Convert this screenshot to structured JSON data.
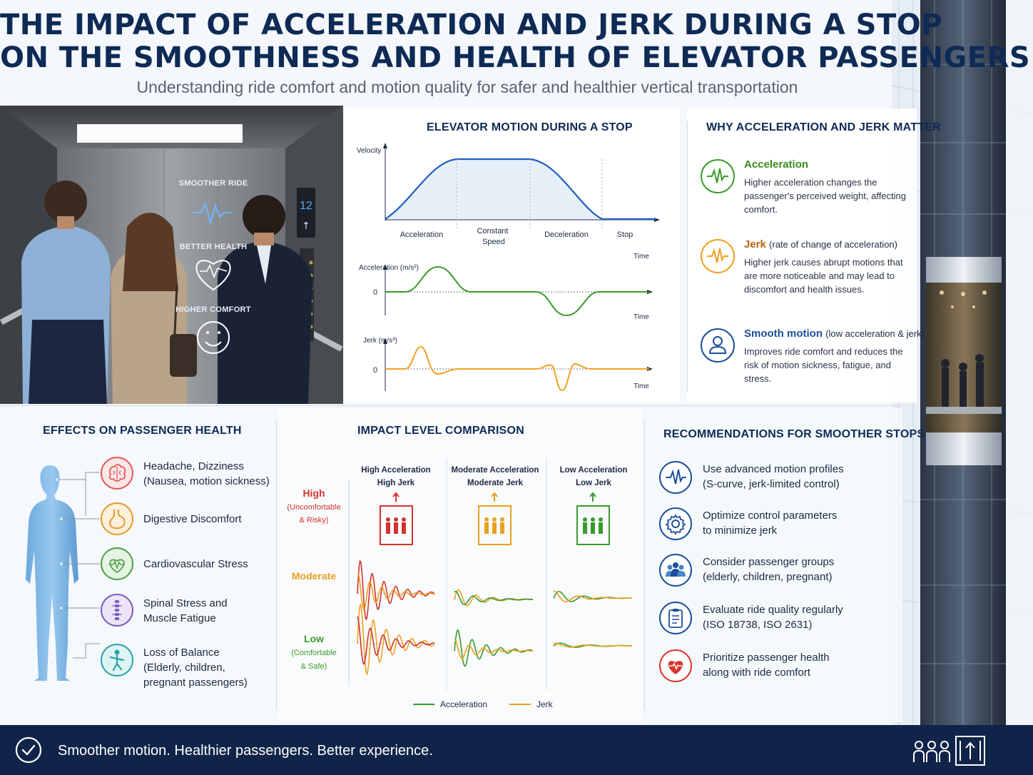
{
  "title": {
    "line1": "THE IMPACT OF ACCELERATION AND JERK DURING A STOP",
    "line2": "ON THE SMOOTHNESS AND HEALTH OF ELEVATOR PASSENGERS",
    "subtitle": "Understanding ride comfort and motion quality for safer and healthier vertical transportation"
  },
  "photo": {
    "floor_display": "12",
    "overlay": [
      "SMOOTHER RIDE",
      "BETTER HEALTH",
      "HIGHER COMFORT"
    ],
    "icons": [
      "heartbeat-icon",
      "heart-pulse-icon",
      "smiley-icon"
    ]
  },
  "motion": {
    "title": "ELEVATOR MOTION DURING A STOP",
    "velocity_label": "Velocity",
    "phases": [
      "Acceleration",
      "Constant Speed",
      "Deceleration",
      "Stop"
    ],
    "time_label": "Time",
    "accel_label": "Acceleration (m/s²)",
    "jerk_label": "Jerk (m/s³)",
    "zero": "0",
    "colors": {
      "velocity": "#1f5fbf",
      "acceleration": "#3a9a2a",
      "jerk": "#f0a020"
    }
  },
  "why": {
    "title": "WHY ACCELERATION AND JERK MATTER",
    "items": [
      {
        "head": "Acceleration",
        "sub": "",
        "body": "Higher acceleration changes the passenger's perceived weight, affecting comfort.",
        "color": "#3a8a1f",
        "icon": "waveform-icon"
      },
      {
        "head": "Jerk",
        "sub": "(rate of change of acceleration)",
        "body": "Higher jerk causes abrupt motions that are more noticeable and may lead to discomfort and health issues.",
        "color": "#b5650e",
        "icon": "waveform-icon"
      },
      {
        "head": "Smooth motion",
        "sub": "(low acceleration & jerk)",
        "body": "Improves ride comfort and reduces the risk of motion sickness, fatigue, and stress.",
        "color": "#1b4f9c",
        "icon": "person-icon"
      }
    ]
  },
  "effects": {
    "title": "EFFECTS ON PASSENGER HEALTH",
    "items": [
      {
        "lines": [
          "Headache, Dizziness",
          "(Nausea, motion sickness)"
        ],
        "icon": "brain-icon",
        "color": "#e05a5a",
        "bg": "#fde6e6"
      },
      {
        "lines": [
          "Digestive Discomfort"
        ],
        "icon": "stomach-icon",
        "color": "#e69a2e",
        "bg": "#fdf0dc"
      },
      {
        "lines": [
          "Cardiovascular Stress"
        ],
        "icon": "heart-pulse-icon",
        "color": "#52a04a",
        "bg": "#e5f4e2"
      },
      {
        "lines": [
          "Spinal Stress and",
          "Muscle Fatigue"
        ],
        "icon": "spine-icon",
        "color": "#7d5bbf",
        "bg": "#ece5f7"
      },
      {
        "lines": [
          "Loss of Balance",
          "(Elderly, children,",
          "pregnant passengers)"
        ],
        "icon": "balance-person-icon",
        "color": "#2aa3a8",
        "bg": "#dff3f3"
      }
    ]
  },
  "impact": {
    "title": "IMPACT LEVEL COMPARISON",
    "levels": [
      {
        "label": "High",
        "note": [
          "(Uncomfortable",
          "& Risky)"
        ],
        "color": "#d0342c"
      },
      {
        "label": "Moderate",
        "note": [],
        "color": "#e8a020"
      },
      {
        "label": "Low",
        "note": [
          "(Comfortable",
          "& Safe)"
        ],
        "color": "#3a9a2a"
      }
    ],
    "columns": [
      {
        "lines": [
          "High Acceleration",
          "High Jerk"
        ],
        "color": "#d0342c"
      },
      {
        "lines": [
          "Moderate Acceleration",
          "Moderate Jerk"
        ],
        "color": "#e8a020"
      },
      {
        "lines": [
          "Low Acceleration",
          "Low Jerk"
        ],
        "color": "#3a9a2a"
      }
    ],
    "legend": {
      "acceleration": "Acceleration",
      "jerk": "Jerk"
    },
    "colors": {
      "acceleration": "#3a9a2a",
      "jerk": "#f0a020",
      "high": "#d0342c"
    }
  },
  "recommendations": {
    "title": "RECOMMENDATIONS FOR SMOOTHER STOPS",
    "items": [
      {
        "lines": [
          "Use advanced motion profiles",
          "(S-curve, jerk-limited control)"
        ],
        "icon": "waveform-icon",
        "color": "#1b4f9c"
      },
      {
        "lines": [
          "Optimize control parameters",
          "to minimize jerk"
        ],
        "icon": "gear-icon",
        "color": "#1b4f9c"
      },
      {
        "lines": [
          "Consider passenger groups",
          "(elderly, children, pregnant)"
        ],
        "icon": "people-icon",
        "color": "#1b4f9c"
      },
      {
        "lines": [
          "Evaluate ride quality regularly",
          "(ISO 18738, ISO 2631)"
        ],
        "icon": "clipboard-icon",
        "color": "#1b4f9c"
      },
      {
        "lines": [
          "Prioritize passenger health",
          "along with ride comfort"
        ],
        "icon": "heart-icon",
        "color": "#d9362b"
      }
    ]
  },
  "footer": {
    "text": "Smoother motion. Healthier passengers.  Better experience.",
    "icons": [
      "check-circle-icon",
      "elevator-passengers-icon"
    ]
  }
}
